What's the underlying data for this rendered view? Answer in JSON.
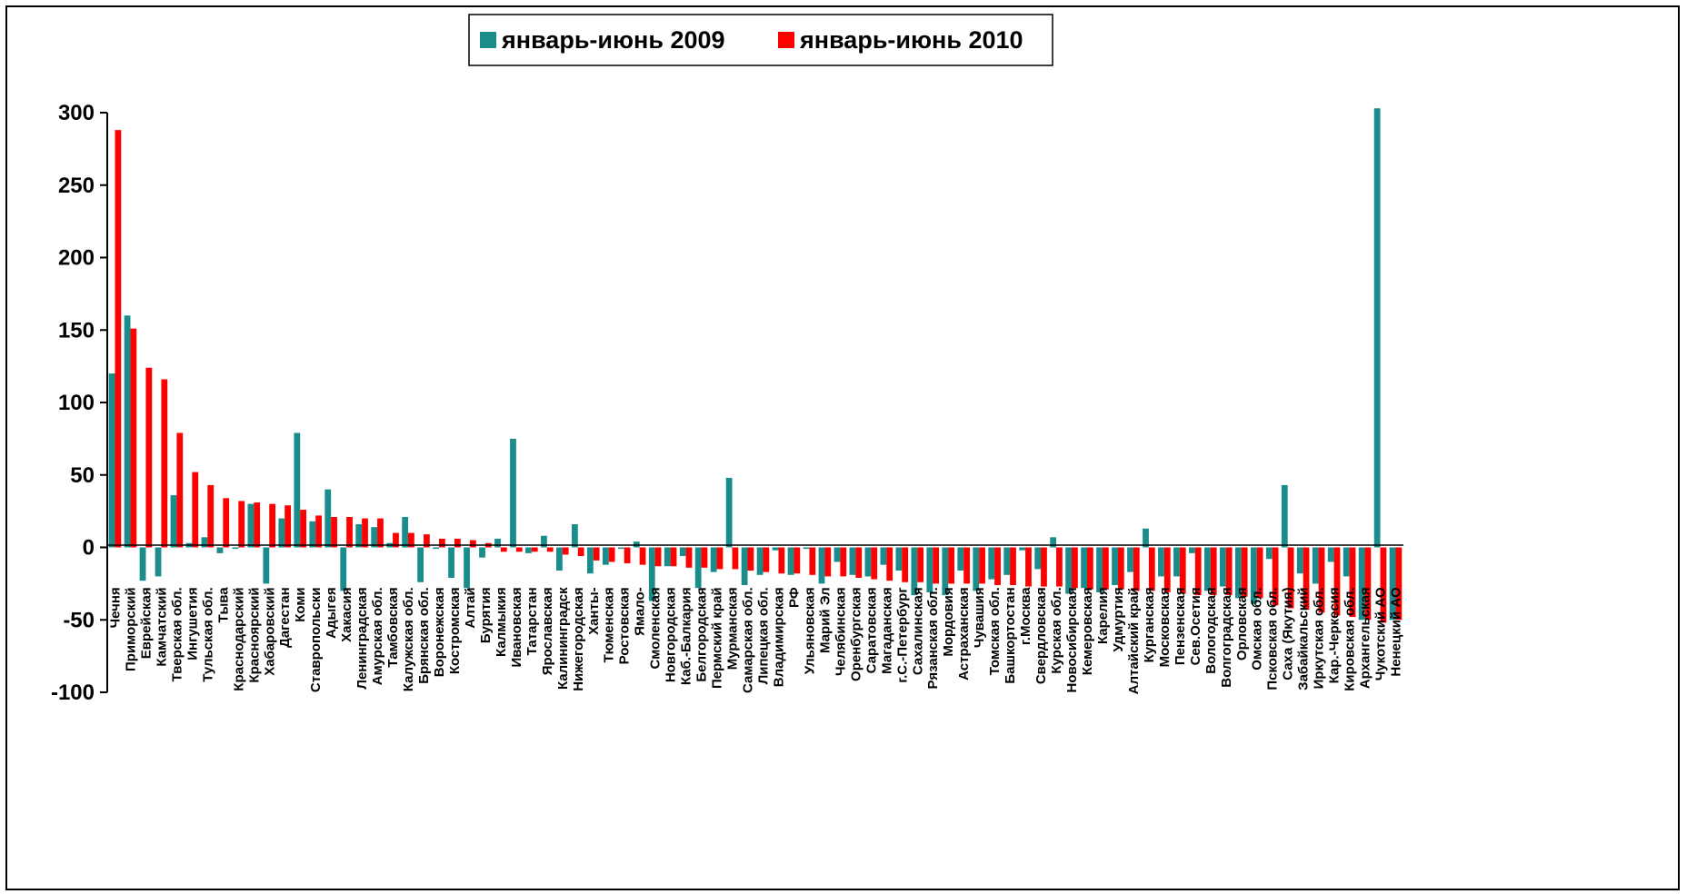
{
  "chart_data": {
    "type": "bar",
    "title": "",
    "xlabel": "",
    "ylabel": "",
    "ylim": [
      -100,
      300
    ],
    "yticks": [
      300,
      250,
      200,
      150,
      100,
      50,
      0,
      -50,
      -100
    ],
    "legend_position": "top-center",
    "grid": false,
    "categories": [
      "Чечня",
      "Приморский",
      "Еврейская",
      "Камчатский",
      "Тверская обл.",
      "Ингушетия",
      "Тульская обл.",
      "Тыва",
      "Краснодарский",
      "Красноярский",
      "Хабаровский",
      "Дагестан",
      "Коми",
      "Ставропольски",
      "Адыгея",
      "Хакасия",
      "Ленинградская",
      "Амурская обл.",
      "Тамбовская",
      "Калужская обл.",
      "Брянская обл.",
      "Воронежская",
      "Костромская",
      "Алтай",
      "Бурятия",
      "Калмыкия",
      "Ивановская",
      "Татарстан",
      "Ярославская",
      "Калининградск",
      "Нижегородская",
      "Ханты-",
      "Тюменская",
      "Ростовская",
      "Ямало-",
      "Смоленская",
      "Новгородская",
      "Каб.-Балкария",
      "Белгородская",
      "Пермский край",
      "Мурманская",
      "Самарская обл.",
      "Липецкая обл.",
      "Владимирская",
      "РФ",
      "Ульяновская",
      "Марий Эл",
      "Челябинская",
      "Оренбургская",
      "Саратовская",
      "Магаданская",
      "г.С.-Петербург",
      "Сахалинская",
      "Рязанская обл.",
      "Мордовия",
      "Астраханская",
      "Чувашия",
      "Томская обл.",
      "Башкортостан",
      "г.Москва",
      "Свердловская",
      "Курская обл.",
      "Новосибирская",
      "Кемеровская",
      "Карелия",
      "Удмуртия",
      "Алтайский край",
      "Курганская",
      "Московская",
      "Пензенская",
      "Сев.Осетия",
      "Вологодская",
      "Волгоградская",
      "Орловская",
      "Омская обл.",
      "Псковская обл.",
      "Саха (Якутия)",
      "Забайкальский",
      "Иркутская обл.",
      "Кар.-Черкесия",
      "Кировская обл.",
      "Архангельская",
      "Чукотский АО",
      "Ненецкий АО"
    ],
    "series": [
      {
        "name": "январь-июнь 2009",
        "color": "#1a8c8c",
        "values": [
          120,
          160,
          -23,
          -20,
          36,
          3,
          7,
          -4,
          -1,
          30,
          -25,
          20,
          79,
          18,
          40,
          -30,
          16,
          14,
          3,
          21,
          -24,
          -1,
          -21,
          -28,
          -7,
          6,
          75,
          -4,
          8,
          -16,
          16,
          -18,
          -12,
          -1,
          4,
          -37,
          -13,
          -6,
          -28,
          -17,
          48,
          -26,
          -19,
          -2,
          -19,
          -1,
          -25,
          -10,
          -19,
          -20,
          -12,
          -16,
          -33,
          -31,
          -33,
          -16,
          -30,
          -22,
          -19,
          -2,
          -15,
          7,
          -32,
          -28,
          -31,
          -26,
          -17,
          13,
          -20,
          -20,
          -4,
          -30,
          -27,
          -35,
          -39,
          -8,
          43,
          -18,
          -25,
          -10,
          -20,
          -50,
          303,
          -50
        ]
      },
      {
        "name": "январь-июнь 2010",
        "color": "#ff0000",
        "values": [
          288,
          151,
          124,
          116,
          79,
          52,
          43,
          34,
          32,
          31,
          30,
          29,
          26,
          22,
          21,
          21,
          20,
          20,
          10,
          10,
          9,
          6,
          6,
          5,
          3,
          -3,
          -3,
          -3,
          -3,
          -5,
          -6,
          -9,
          -10,
          -11,
          -12,
          -13,
          -13,
          -14,
          -14,
          -15,
          -15,
          -16,
          -17,
          -18,
          -18,
          -19,
          -20,
          -20,
          -21,
          -22,
          -23,
          -24,
          -24,
          -25,
          -25,
          -25,
          -25,
          -26,
          -26,
          -27,
          -27,
          -27,
          -28,
          -29,
          -29,
          -29,
          -30,
          -30,
          -31,
          -32,
          -33,
          -33,
          -33,
          -34,
          -35,
          -40,
          -42,
          -43,
          -45,
          -47,
          -48,
          -50,
          -52,
          -50
        ]
      }
    ]
  }
}
